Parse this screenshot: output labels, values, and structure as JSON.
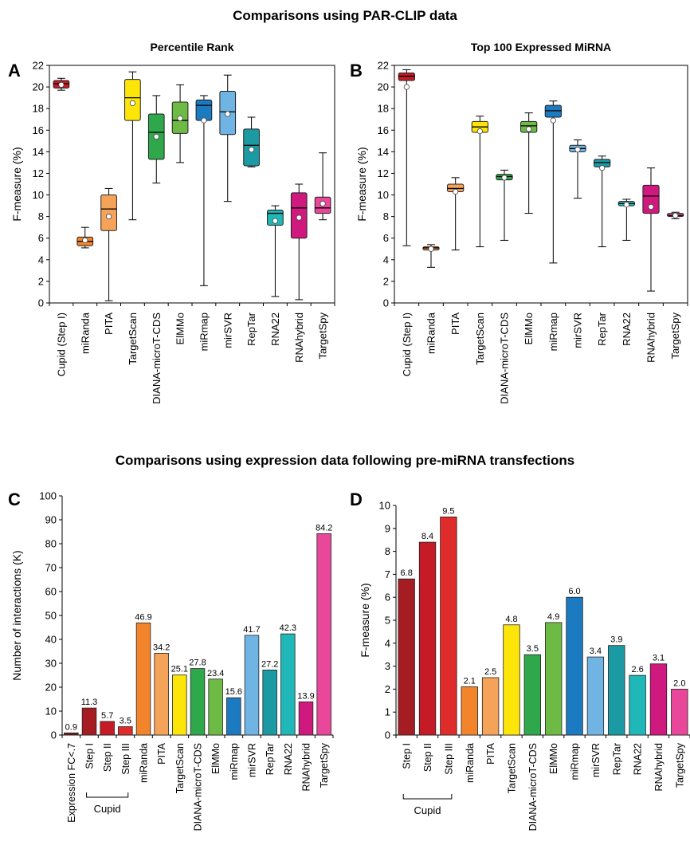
{
  "page": {
    "section1_title": "Comparisons using PAR-CLIP data",
    "section2_title": "Comparisons using expression data following pre-miRNA transfections"
  },
  "colors": {
    "axis": "#000000",
    "red": "#c41b27",
    "darkred": "#a51c22",
    "orange": "#f2852b",
    "lightorange": "#f6a35a",
    "yellow": "#fde50a",
    "green": "#2ea84a",
    "lightgreen": "#6dbb45",
    "blue": "#1c7ac0",
    "lightblue": "#6fb4e3",
    "teal": "#1c9aa4",
    "tealbright": "#1fb7b8",
    "magenta": "#d0197f",
    "pink": "#e8479a"
  },
  "chart_data": [
    {
      "panel_letter": "A",
      "type": "box",
      "title": "Percentile Rank",
      "ylabel": "F-measure (%)",
      "ylim": [
        0,
        22
      ],
      "yticks": [
        0,
        2,
        4,
        6,
        8,
        10,
        12,
        14,
        16,
        18,
        20,
        22
      ],
      "categories": [
        "Cupid (Step I)",
        "miRanda",
        "PITA",
        "TargetScan",
        "DIANA-microT-CDS",
        "ElMMo",
        "miRmap",
        "mirSVR",
        "RepTar",
        "RNA22",
        "RNAhybrid",
        "TargetSpy"
      ],
      "colors": [
        "#c41b27",
        "#f2852b",
        "#f6a35a",
        "#fde50a",
        "#2ea84a",
        "#6dbb45",
        "#1c7ac0",
        "#6fb4e3",
        "#1c9aa4",
        "#1fb7b8",
        "#d0197f",
        "#e8479a"
      ],
      "boxes": [
        {
          "min": 19.7,
          "q1": 19.9,
          "median": 20.3,
          "q3": 20.6,
          "max": 20.8,
          "mean": 20.2
        },
        {
          "min": 5.1,
          "q1": 5.3,
          "median": 5.7,
          "q3": 6.1,
          "max": 7.0,
          "mean": 5.8
        },
        {
          "min": 0.2,
          "q1": 6.7,
          "median": 8.7,
          "q3": 10.0,
          "max": 10.6,
          "mean": 8.0
        },
        {
          "min": 7.7,
          "q1": 16.9,
          "median": 19.0,
          "q3": 20.7,
          "max": 21.4,
          "mean": 18.5
        },
        {
          "min": 11.1,
          "q1": 13.3,
          "median": 15.8,
          "q3": 17.5,
          "max": 19.2,
          "mean": 15.4
        },
        {
          "min": 13.0,
          "q1": 15.7,
          "median": 16.9,
          "q3": 18.6,
          "max": 20.2,
          "mean": 17.1
        },
        {
          "min": 1.6,
          "q1": 16.9,
          "median": 18.3,
          "q3": 18.8,
          "max": 19.2,
          "mean": 16.9
        },
        {
          "min": 9.4,
          "q1": 15.6,
          "median": 17.7,
          "q3": 19.6,
          "max": 21.1,
          "mean": 17.5
        },
        {
          "min": 12.6,
          "q1": 12.7,
          "median": 14.6,
          "q3": 16.1,
          "max": 17.2,
          "mean": 14.2
        },
        {
          "min": 0.6,
          "q1": 7.2,
          "median": 8.3,
          "q3": 8.6,
          "max": 9.0,
          "mean": 7.6
        },
        {
          "min": 0.3,
          "q1": 6.0,
          "median": 8.8,
          "q3": 10.2,
          "max": 11.0,
          "mean": 7.9
        },
        {
          "min": 7.7,
          "q1": 8.3,
          "median": 8.8,
          "q3": 9.8,
          "max": 13.9,
          "mean": 9.2
        }
      ]
    },
    {
      "panel_letter": "B",
      "type": "box",
      "title": "Top 100 Expressed MiRNA",
      "ylabel": "F-measure (%)",
      "ylim": [
        0,
        22
      ],
      "yticks": [
        0,
        2,
        4,
        6,
        8,
        10,
        12,
        14,
        16,
        18,
        20,
        22
      ],
      "categories": [
        "Cupid (Step I)",
        "miRanda",
        "PITA",
        "TargetScan",
        "DIANA-microT-CDS",
        "ElMMo",
        "miRmap",
        "mirSVR",
        "RepTar",
        "RNA22",
        "RNAhybrid",
        "TargetSpy"
      ],
      "colors": [
        "#c41b27",
        "#f2852b",
        "#f6a35a",
        "#fde50a",
        "#2ea84a",
        "#6dbb45",
        "#1c7ac0",
        "#6fb4e3",
        "#1c9aa4",
        "#1fb7b8",
        "#d0197f",
        "#e8479a"
      ],
      "boxes": [
        {
          "min": 5.3,
          "q1": 20.6,
          "median": 21.0,
          "q3": 21.3,
          "max": 21.6,
          "mean": 20.0
        },
        {
          "min": 3.3,
          "q1": 4.9,
          "median": 5.1,
          "q3": 5.2,
          "max": 5.4,
          "mean": 5.0
        },
        {
          "min": 4.9,
          "q1": 10.3,
          "median": 10.6,
          "q3": 11.0,
          "max": 11.6,
          "mean": 10.3
        },
        {
          "min": 5.2,
          "q1": 15.8,
          "median": 16.3,
          "q3": 16.8,
          "max": 17.3,
          "mean": 15.9
        },
        {
          "min": 5.8,
          "q1": 11.4,
          "median": 11.7,
          "q3": 11.9,
          "max": 12.3,
          "mean": 11.6
        },
        {
          "min": 8.3,
          "q1": 15.8,
          "median": 16.4,
          "q3": 16.8,
          "max": 17.6,
          "mean": 16.1
        },
        {
          "min": 3.7,
          "q1": 17.2,
          "median": 17.8,
          "q3": 18.3,
          "max": 18.7,
          "mean": 16.9
        },
        {
          "min": 9.7,
          "q1": 14.0,
          "median": 14.3,
          "q3": 14.6,
          "max": 15.1,
          "mean": 14.2
        },
        {
          "min": 5.2,
          "q1": 12.6,
          "median": 13.0,
          "q3": 13.3,
          "max": 13.6,
          "mean": 12.5
        },
        {
          "min": 5.8,
          "q1": 9.0,
          "median": 9.2,
          "q3": 9.4,
          "max": 9.6,
          "mean": 9.1
        },
        {
          "min": 1.1,
          "q1": 8.3,
          "median": 9.9,
          "q3": 10.9,
          "max": 12.5,
          "mean": 8.9
        },
        {
          "min": 7.8,
          "q1": 8.0,
          "median": 8.1,
          "q3": 8.3,
          "max": 8.4,
          "mean": 8.1
        }
      ]
    },
    {
      "panel_letter": "C",
      "type": "bar",
      "title": "",
      "ylabel": "Number of interactions (K)",
      "ylim": [
        0,
        100
      ],
      "yticks": [
        0,
        10,
        20,
        30,
        40,
        50,
        60,
        70,
        80,
        90,
        100
      ],
      "categories": [
        "Expression FC<.7",
        "Step I",
        "Step II",
        "Step III",
        "miRanda",
        "PITA",
        "TargetScan",
        "DIANA-microT-CDS",
        "ElMMo",
        "miRmap",
        "mirSVR",
        "RepTar",
        "RNA22",
        "RNAhybrid",
        "TargetSpy"
      ],
      "values": [
        0.9,
        11.3,
        5.7,
        3.5,
        46.9,
        34.2,
        25.1,
        27.8,
        23.4,
        15.6,
        41.7,
        27.2,
        42.3,
        13.9,
        84.2
      ],
      "value_labels": [
        "0.9",
        "11.3",
        "5.7",
        "3.5",
        "46.9",
        "34.2",
        "25.1",
        "27.8",
        "23.4",
        "15.6",
        "41.7",
        "27.2",
        "42.3",
        "13.9",
        "84.2"
      ],
      "colors": [
        "#7a1414",
        "#a51c22",
        "#c41b27",
        "#e02b2b",
        "#f2852b",
        "#f6a35a",
        "#fde50a",
        "#2ea84a",
        "#6dbb45",
        "#1c7ac0",
        "#6fb4e3",
        "#1c9aa4",
        "#1fb7b8",
        "#d0197f",
        "#e8479a"
      ],
      "group_label": "Cupid",
      "group_range": [
        1,
        3
      ]
    },
    {
      "panel_letter": "D",
      "type": "bar",
      "title": "",
      "ylabel": "F-measure (%)",
      "ylim": [
        0,
        10
      ],
      "yticks": [
        0,
        1,
        2,
        3,
        4,
        5,
        6,
        7,
        8,
        9,
        10
      ],
      "categories": [
        "Step I",
        "Step II",
        "Step III",
        "miRanda",
        "PITA",
        "TargetScan",
        "DIANA-microT-CDS",
        "ElMMo",
        "miRmap",
        "mirSVR",
        "RepTar",
        "RNA22",
        "RNAhybrid",
        "TargetSpy"
      ],
      "values": [
        6.8,
        8.4,
        9.5,
        2.1,
        2.5,
        4.8,
        3.5,
        4.9,
        6.0,
        3.4,
        3.9,
        2.6,
        3.1,
        2.0
      ],
      "value_labels": [
        "6.8",
        "8.4",
        "9.5",
        "2.1",
        "2.5",
        "4.8",
        "3.5",
        "4.9",
        "6.0",
        "3.4",
        "3.9",
        "2.6",
        "3.1",
        "2.0"
      ],
      "colors": [
        "#a51c22",
        "#c41b27",
        "#e02b2b",
        "#f2852b",
        "#f6a35a",
        "#fde50a",
        "#2ea84a",
        "#6dbb45",
        "#1c7ac0",
        "#6fb4e3",
        "#1c9aa4",
        "#1fb7b8",
        "#d0197f",
        "#e8479a"
      ],
      "group_label": "Cupid",
      "group_range": [
        0,
        2
      ]
    }
  ]
}
